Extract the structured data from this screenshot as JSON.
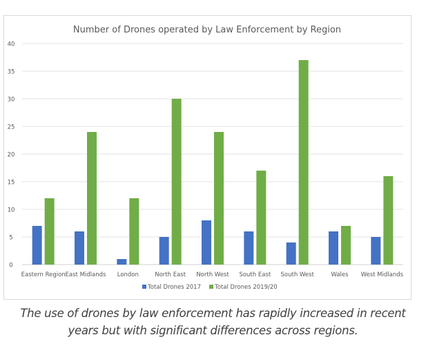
{
  "chart_data": {
    "type": "bar",
    "title": "Number of Drones operated by Law Enforcement by Region",
    "xlabel": "",
    "ylabel": "",
    "categories": [
      "Eastern Region",
      "East Midlands",
      "London",
      "North East",
      "North West",
      "South East",
      "South West",
      "Wales",
      "West Midlands"
    ],
    "series": [
      {
        "name": "Total Drones 2017",
        "color": "#4472c4",
        "values": [
          7,
          6,
          1,
          5,
          8,
          6,
          4,
          6,
          5
        ]
      },
      {
        "name": "Total Drones 2019/20",
        "color": "#70ad47",
        "values": [
          12,
          24,
          12,
          30,
          24,
          17,
          37,
          7,
          16
        ]
      }
    ],
    "ylim": [
      0,
      40
    ],
    "yticks": [
      0,
      5,
      10,
      15,
      20,
      25,
      30,
      35,
      40
    ],
    "grid": true,
    "legend_position": "bottom"
  },
  "caption": {
    "line1": "The use of drones by law enforcement has rapidly increased in recent",
    "line2": "years but with significant differences across regions."
  }
}
